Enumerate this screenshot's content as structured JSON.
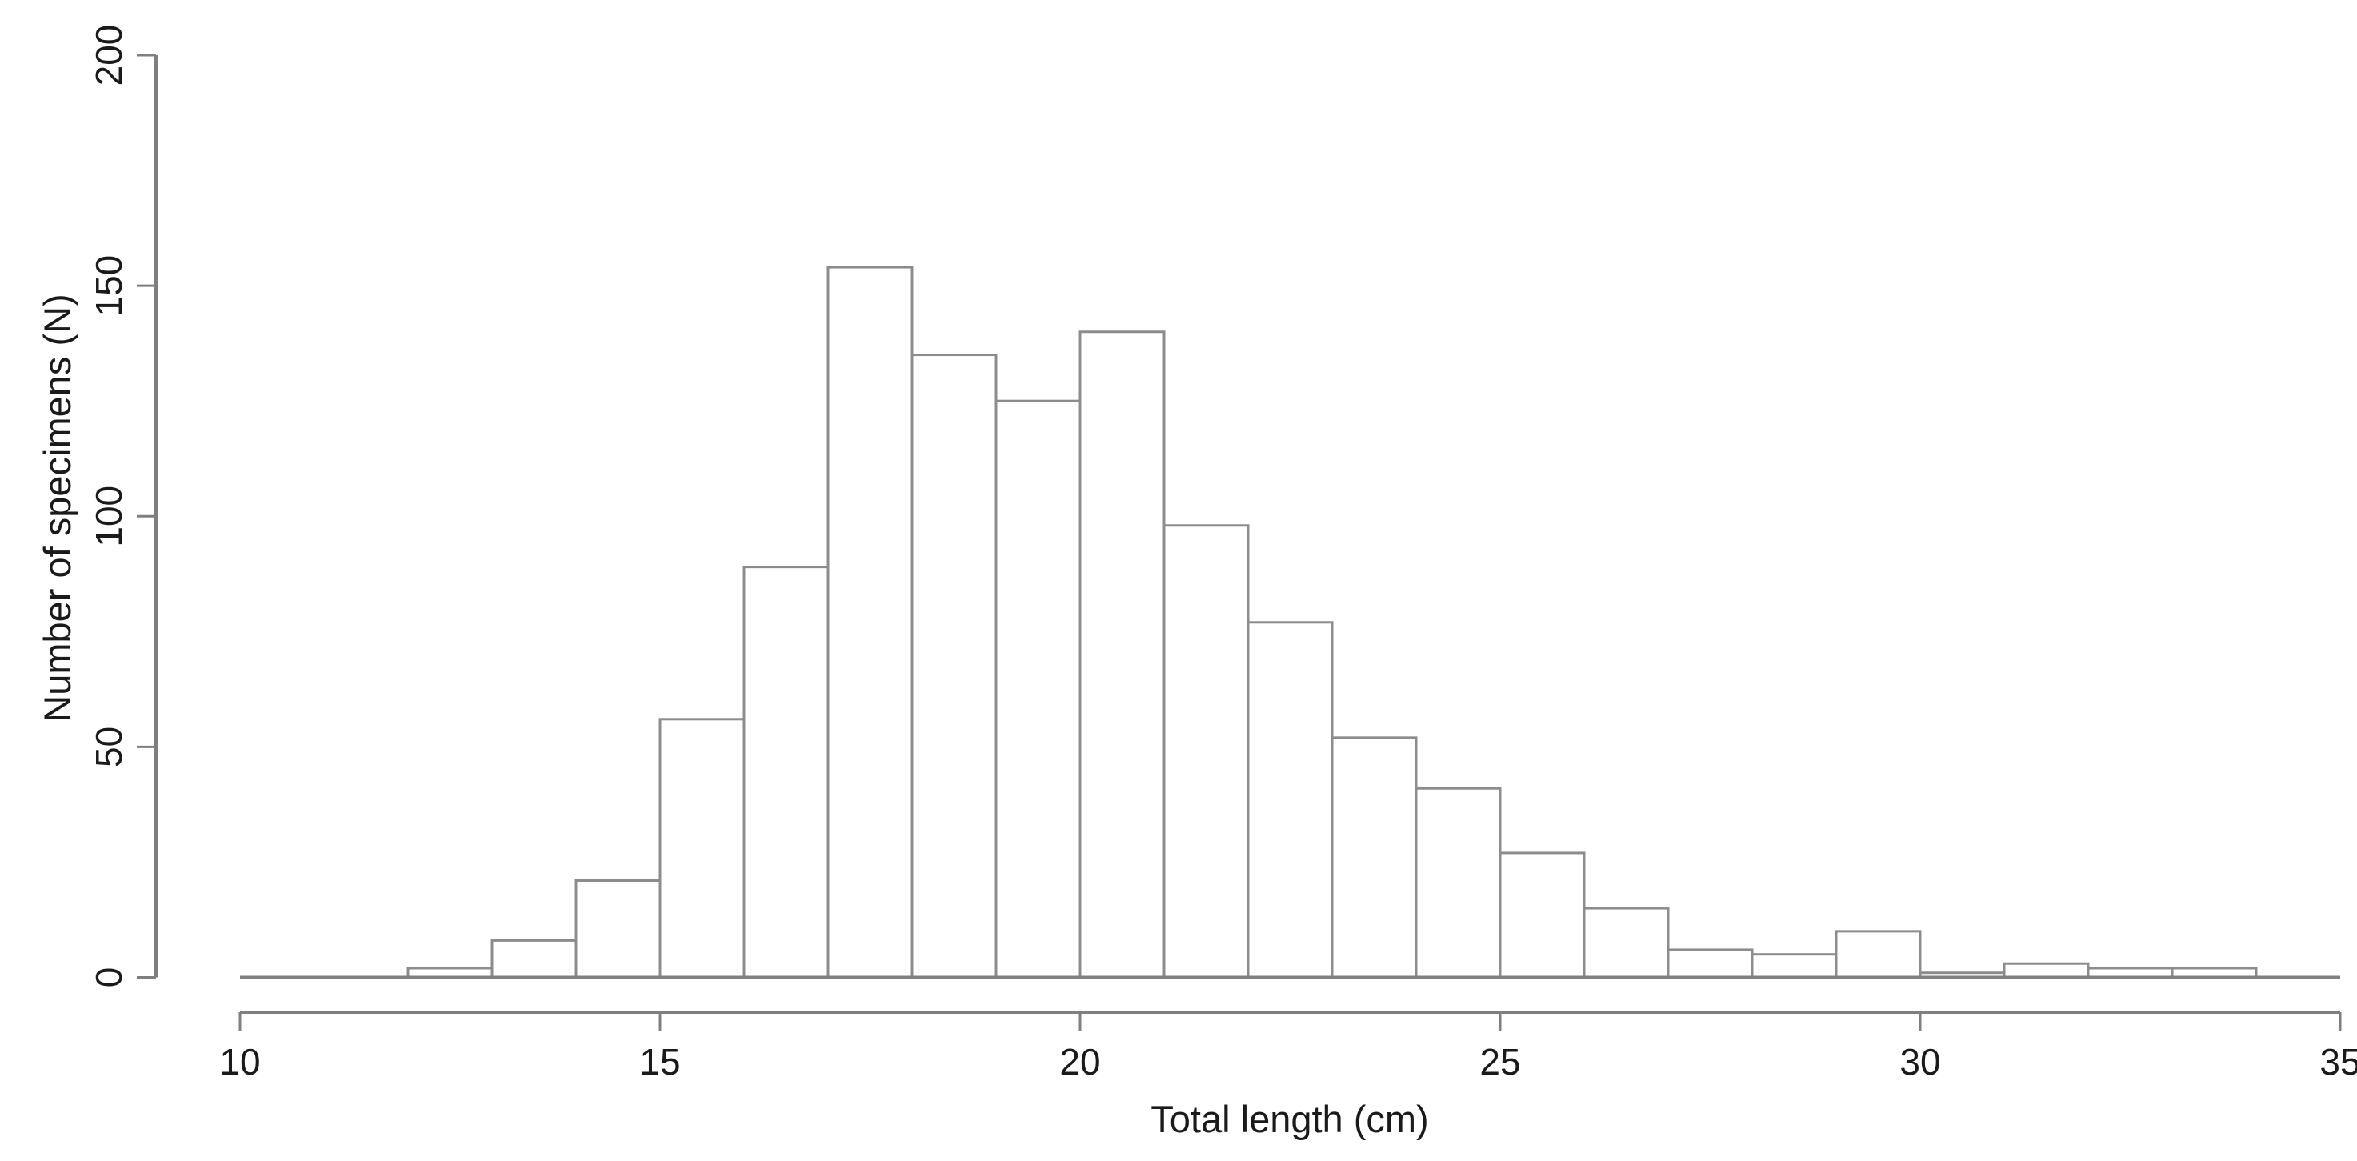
{
  "chart_data": {
    "type": "bar",
    "subtype": "histogram",
    "title": "",
    "xlabel": "Total length (cm)",
    "ylabel": "Number of specimens (N)",
    "xlim": [
      10,
      35
    ],
    "ylim": [
      0,
      200
    ],
    "x_ticks": [
      10,
      15,
      20,
      25,
      30,
      35
    ],
    "y_ticks": [
      0,
      50,
      100,
      150,
      200
    ],
    "bin_width": 1,
    "bin_edges": [
      10,
      11,
      12,
      13,
      14,
      15,
      16,
      17,
      18,
      19,
      20,
      21,
      22,
      23,
      24,
      25,
      26,
      27,
      28,
      29,
      30,
      31,
      32,
      33,
      34,
      35
    ],
    "counts": [
      0,
      0,
      2,
      8,
      21,
      56,
      89,
      154,
      135,
      125,
      140,
      98,
      77,
      52,
      41,
      27,
      15,
      6,
      5,
      10,
      1,
      3,
      2,
      2,
      0
    ],
    "grid": "off",
    "legend": "none",
    "colors": {
      "background": "#ffffff",
      "bar_fill": "#ffffff",
      "bar_border": "#8c8c8c",
      "axis_line": "#7f7f7f",
      "baseline": "#808080",
      "text": "#1a1a1a"
    }
  }
}
